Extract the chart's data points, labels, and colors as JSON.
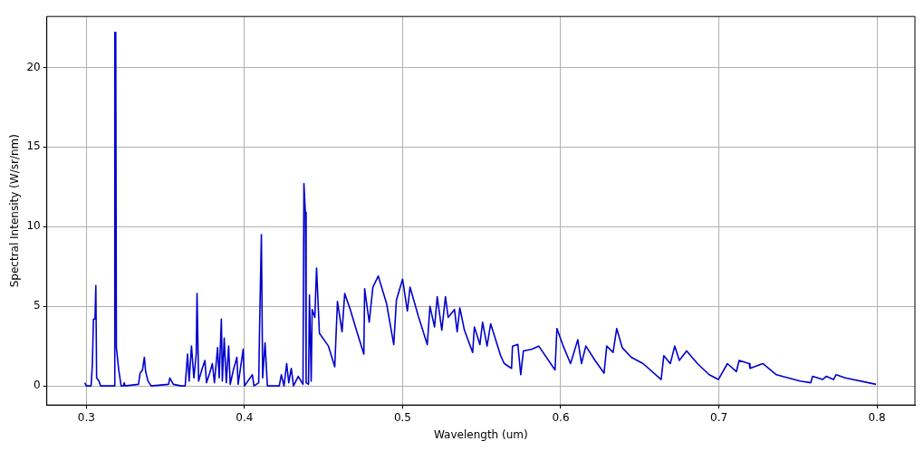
{
  "chart_data": {
    "type": "line",
    "xlabel": "Wavelength (um)",
    "ylabel": "Spectral Intensity (W/sr/nm)",
    "xlim": [
      0.275,
      0.824
    ],
    "xticks": [
      0.3,
      0.4,
      0.5,
      0.6,
      0.7,
      0.8
    ],
    "ylim": [
      -1.2,
      23.2
    ],
    "yticks": [
      0,
      5,
      10,
      15,
      20
    ],
    "grid": true,
    "legend": false,
    "marker": "none",
    "line_style": "solid",
    "series": [
      {
        "color": "#0000cc",
        "x": [
          0.299,
          0.3,
          0.303,
          0.3038,
          0.3045,
          0.3055,
          0.306,
          0.3065,
          0.308,
          0.309,
          0.3176,
          0.318,
          0.3186,
          0.319,
          0.3205,
          0.322,
          0.3235,
          0.324,
          0.3245,
          0.333,
          0.334,
          0.3355,
          0.3367,
          0.3375,
          0.339,
          0.341,
          0.352,
          0.3528,
          0.355,
          0.36,
          0.3625,
          0.364,
          0.365,
          0.3665,
          0.368,
          0.3695,
          0.37,
          0.371,
          0.373,
          0.375,
          0.376,
          0.378,
          0.3797,
          0.381,
          0.383,
          0.384,
          0.3854,
          0.386,
          0.3872,
          0.3885,
          0.39,
          0.391,
          0.393,
          0.3952,
          0.396,
          0.3992,
          0.4,
          0.405,
          0.406,
          0.409,
          0.4095,
          0.4107,
          0.4115,
          0.413,
          0.4145,
          0.422,
          0.4233,
          0.425,
          0.4267,
          0.428,
          0.4296,
          0.431,
          0.434,
          0.437,
          0.4376,
          0.4385,
          0.439,
          0.4405,
          0.4411,
          0.4422,
          0.4428,
          0.4445,
          0.4456,
          0.4474,
          0.4531,
          0.4571,
          0.4588,
          0.4617,
          0.4634,
          0.4669,
          0.4714,
          0.4755,
          0.476,
          0.4789,
          0.4812,
          0.4846,
          0.4898,
          0.4944,
          0.4961,
          0.5,
          0.503,
          0.5047,
          0.5099,
          0.5156,
          0.5173,
          0.5202,
          0.5219,
          0.5248,
          0.5271,
          0.5288,
          0.5328,
          0.5345,
          0.5362,
          0.5391,
          0.5443,
          0.5454,
          0.5489,
          0.5506,
          0.5534,
          0.5557,
          0.562,
          0.5643,
          0.5689,
          0.5695,
          0.5729,
          0.5747,
          0.5764,
          0.5815,
          0.5861,
          0.5964,
          0.5976,
          0.6016,
          0.6062,
          0.6108,
          0.6131,
          0.6159,
          0.6217,
          0.6274,
          0.6291,
          0.6331,
          0.6354,
          0.6389,
          0.6446,
          0.6521,
          0.6635,
          0.6652,
          0.6693,
          0.6721,
          0.675,
          0.6796,
          0.6865,
          0.6939,
          0.6997,
          0.7054,
          0.7111,
          0.7128,
          0.7192,
          0.7197,
          0.7278,
          0.7364,
          0.7513,
          0.7581,
          0.7593,
          0.7656,
          0.7679,
          0.7725,
          0.7741,
          0.7799,
          0.7994
        ],
        "values": [
          0.2,
          0,
          0,
          1.3,
          4.2,
          4.2,
          6.3,
          0.5,
          0.3,
          0,
          0,
          22.2,
          22.2,
          2.4,
          1.0,
          0,
          0,
          0.2,
          0,
          0.1,
          0.8,
          1.0,
          1.8,
          0.9,
          0.3,
          0,
          0.1,
          0.5,
          0.1,
          0,
          0,
          2.0,
          0.3,
          2.5,
          0.5,
          2.0,
          5.8,
          0.3,
          1.0,
          1.6,
          0.2,
          0.8,
          1.4,
          0.2,
          2.4,
          0.5,
          4.2,
          0.3,
          3.0,
          0.2,
          2.5,
          0.1,
          1.0,
          1.8,
          0.1,
          2.3,
          0,
          0.7,
          0,
          0.2,
          3.3,
          9.5,
          0.5,
          2.7,
          0,
          0,
          0.7,
          0,
          1.4,
          0.2,
          1.1,
          0,
          0.6,
          0.1,
          12.7,
          10.9,
          0.2,
          0.1,
          5.7,
          0.3,
          4.8,
          4.3,
          7.4,
          3.3,
          2.5,
          1.2,
          5.3,
          3.4,
          5.8,
          4.8,
          3.3,
          2.0,
          6.1,
          4.0,
          6.2,
          6.9,
          5.2,
          2.6,
          5.4,
          6.7,
          4.7,
          6.2,
          4.4,
          2.6,
          5.0,
          3.7,
          5.6,
          3.5,
          5.6,
          4.3,
          4.8,
          3.4,
          4.9,
          3.5,
          2.1,
          3.7,
          2.6,
          4.0,
          2.5,
          3.9,
          1.9,
          1.4,
          1.1,
          2.5,
          2.6,
          0.7,
          2.2,
          2.3,
          2.5,
          1.0,
          3.6,
          2.5,
          1.4,
          2.9,
          1.4,
          2.5,
          1.6,
          0.8,
          2.5,
          2.1,
          3.6,
          2.4,
          1.8,
          1.4,
          0.4,
          1.9,
          1.4,
          2.5,
          1.6,
          2.2,
          1.4,
          0.7,
          0.4,
          1.4,
          0.9,
          1.6,
          1.4,
          1.1,
          1.4,
          0.7,
          0.3,
          0.2,
          0.6,
          0.4,
          0.6,
          0.4,
          0.7,
          0.5,
          0.1
        ]
      }
    ]
  }
}
